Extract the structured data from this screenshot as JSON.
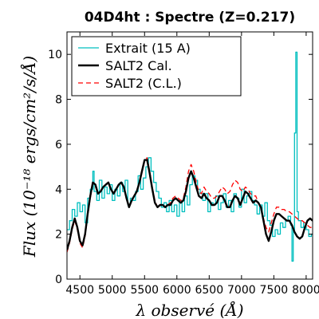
{
  "chart_data": {
    "type": "line",
    "title": "04D4ht : Spectre (Z=0.217)",
    "xlabel": "λ observé (Å)",
    "ylabel": "Flux (10⁻¹⁸ ergs/cm²/s/Å)",
    "xlim": [
      4300,
      8100
    ],
    "ylim": [
      0,
      11
    ],
    "xticks": [
      4500,
      5000,
      5500,
      6000,
      6500,
      7000,
      7500,
      8000
    ],
    "yticks": [
      0,
      2,
      4,
      6,
      8,
      10
    ],
    "legend_position": "top-left",
    "series": [
      {
        "name": "Extrait (15 A)",
        "color": "#00bfbf",
        "style": "steps",
        "x": [
          4300,
          4340,
          4380,
          4420,
          4460,
          4500,
          4540,
          4580,
          4620,
          4660,
          4700,
          4720,
          4760,
          4800,
          4840,
          4880,
          4920,
          4960,
          5000,
          5040,
          5080,
          5120,
          5160,
          5200,
          5240,
          5280,
          5320,
          5360,
          5400,
          5440,
          5480,
          5520,
          5560,
          5600,
          5640,
          5680,
          5720,
          5760,
          5800,
          5840,
          5880,
          5920,
          5960,
          6000,
          6040,
          6080,
          6120,
          6160,
          6200,
          6240,
          6280,
          6320,
          6360,
          6400,
          6440,
          6480,
          6520,
          6560,
          6600,
          6640,
          6680,
          6720,
          6760,
          6800,
          6840,
          6880,
          6920,
          6960,
          7000,
          7040,
          7080,
          7120,
          7160,
          7200,
          7240,
          7280,
          7320,
          7360,
          7400,
          7440,
          7480,
          7520,
          7560,
          7600,
          7640,
          7680,
          7720,
          7760,
          7780,
          7800,
          7820,
          7840,
          7860,
          7880,
          7920,
          7960,
          8000,
          8040,
          8080
        ],
        "y": [
          2.2,
          2.6,
          3.1,
          2.8,
          3.4,
          3.0,
          3.3,
          2.5,
          3.6,
          4.0,
          4.8,
          3.9,
          3.5,
          4.4,
          3.6,
          4.1,
          3.8,
          4.2,
          3.5,
          4.0,
          3.7,
          4.3,
          3.9,
          4.4,
          3.3,
          3.6,
          3.5,
          3.9,
          4.6,
          4.0,
          4.5,
          5.0,
          5.4,
          4.8,
          4.3,
          3.9,
          3.6,
          3.2,
          3.4,
          3.0,
          3.5,
          3.0,
          3.3,
          2.8,
          3.5,
          3.0,
          3.7,
          3.3,
          4.2,
          4.6,
          4.4,
          4.0,
          3.8,
          3.5,
          3.8,
          3.0,
          3.4,
          3.3,
          3.7,
          3.1,
          3.4,
          3.8,
          3.2,
          3.5,
          3.0,
          3.8,
          3.6,
          3.2,
          4.0,
          3.4,
          3.7,
          3.9,
          3.5,
          3.3,
          2.9,
          3.3,
          2.8,
          3.4,
          2.6,
          2.4,
          1.9,
          2.2,
          2.0,
          2.5,
          2.3,
          2.6,
          2.8,
          2.4,
          0.8,
          2.2,
          6.5,
          10.1,
          3.0,
          2.6,
          2.3,
          2.5,
          2.2,
          1.9,
          2.0
        ]
      },
      {
        "name": "SALT2 Cal.",
        "color": "#000000",
        "style": "solid",
        "x": [
          4300,
          4340,
          4380,
          4420,
          4460,
          4500,
          4540,
          4580,
          4620,
          4660,
          4700,
          4740,
          4780,
          4820,
          4860,
          4900,
          4940,
          4980,
          5020,
          5060,
          5100,
          5140,
          5180,
          5220,
          5260,
          5300,
          5340,
          5380,
          5420,
          5460,
          5500,
          5540,
          5580,
          5620,
          5660,
          5700,
          5740,
          5780,
          5820,
          5860,
          5900,
          5940,
          5980,
          6020,
          6060,
          6100,
          6140,
          6180,
          6220,
          6260,
          6300,
          6340,
          6380,
          6420,
          6460,
          6500,
          6540,
          6580,
          6620,
          6660,
          6700,
          6740,
          6780,
          6820,
          6860,
          6900,
          6940,
          6980,
          7020,
          7060,
          7100,
          7140,
          7180,
          7220,
          7260,
          7300,
          7340,
          7380,
          7420,
          7460,
          7500,
          7540,
          7580,
          7620,
          7660,
          7700,
          7740,
          7780,
          7820,
          7860,
          7900,
          7940,
          7980,
          8020,
          8060,
          8100
        ],
        "y": [
          1.3,
          1.7,
          2.3,
          2.7,
          2.3,
          1.7,
          1.5,
          2.0,
          2.9,
          3.7,
          4.3,
          4.2,
          3.8,
          3.9,
          4.1,
          4.2,
          4.3,
          4.0,
          3.8,
          4.0,
          4.2,
          4.3,
          4.1,
          3.6,
          3.2,
          3.5,
          3.7,
          3.9,
          4.3,
          4.8,
          5.3,
          5.3,
          4.7,
          4.0,
          3.4,
          3.2,
          3.3,
          3.3,
          3.2,
          3.3,
          3.3,
          3.5,
          3.6,
          3.5,
          3.4,
          3.5,
          3.9,
          4.5,
          4.8,
          4.5,
          4.1,
          3.7,
          3.6,
          3.8,
          3.6,
          3.5,
          3.3,
          3.3,
          3.4,
          3.7,
          3.7,
          3.5,
          3.2,
          3.2,
          3.5,
          3.7,
          3.6,
          3.3,
          3.6,
          3.9,
          3.8,
          3.6,
          3.4,
          3.5,
          3.4,
          3.2,
          2.6,
          2.0,
          1.7,
          2.1,
          2.6,
          2.9,
          2.9,
          2.8,
          2.7,
          2.6,
          2.6,
          2.4,
          2.1,
          1.9,
          1.8,
          1.9,
          2.3,
          2.6,
          2.7,
          2.6
        ]
      },
      {
        "name": "SALT2 (C.L.)",
        "color": "#ff0000",
        "style": "dashed",
        "x": [
          4300,
          4340,
          4380,
          4420,
          4460,
          4500,
          4540,
          4580,
          4620,
          4660,
          4700,
          4740,
          4780,
          4820,
          4860,
          4900,
          4940,
          4980,
          5020,
          5060,
          5100,
          5140,
          5180,
          5220,
          5260,
          5300,
          5340,
          5380,
          5420,
          5460,
          5500,
          5540,
          5580,
          5620,
          5660,
          5700,
          5740,
          5780,
          5820,
          5860,
          5900,
          5940,
          5980,
          6020,
          6060,
          6100,
          6140,
          6180,
          6220,
          6260,
          6300,
          6340,
          6380,
          6420,
          6460,
          6500,
          6540,
          6580,
          6620,
          6660,
          6700,
          6740,
          6780,
          6820,
          6860,
          6900,
          6940,
          6980,
          7020,
          7060,
          7100,
          7140,
          7180,
          7220,
          7260,
          7300,
          7340,
          7380,
          7420,
          7460,
          7500,
          7540,
          7580,
          7620,
          7660,
          7700,
          7740,
          7780,
          7820,
          7860,
          7900,
          7940,
          7980,
          8020,
          8060,
          8100
        ],
        "y": [
          1.2,
          1.6,
          2.2,
          2.6,
          2.2,
          1.6,
          1.4,
          1.9,
          2.8,
          3.6,
          4.2,
          4.1,
          3.8,
          3.9,
          4.1,
          4.2,
          4.3,
          4.0,
          3.8,
          4.0,
          4.2,
          4.3,
          4.1,
          3.6,
          3.2,
          3.5,
          3.7,
          3.9,
          4.3,
          4.8,
          5.3,
          5.4,
          4.8,
          4.1,
          3.5,
          3.2,
          3.3,
          3.3,
          3.2,
          3.3,
          3.4,
          3.6,
          3.7,
          3.6,
          3.5,
          3.6,
          4.1,
          4.8,
          5.1,
          4.8,
          4.3,
          3.9,
          3.8,
          4.1,
          3.9,
          3.8,
          3.6,
          3.6,
          3.7,
          3.9,
          4.1,
          4.0,
          3.8,
          3.9,
          4.2,
          4.4,
          4.3,
          4.0,
          3.9,
          4.1,
          4.0,
          3.8,
          3.7,
          3.7,
          3.4,
          3.1,
          2.7,
          2.3,
          2.1,
          2.5,
          2.9,
          3.2,
          3.2,
          3.1,
          3.1,
          3.0,
          3.0,
          2.9,
          2.8,
          2.7,
          2.6,
          2.6,
          2.5,
          2.4,
          2.3,
          2.3
        ]
      }
    ]
  }
}
